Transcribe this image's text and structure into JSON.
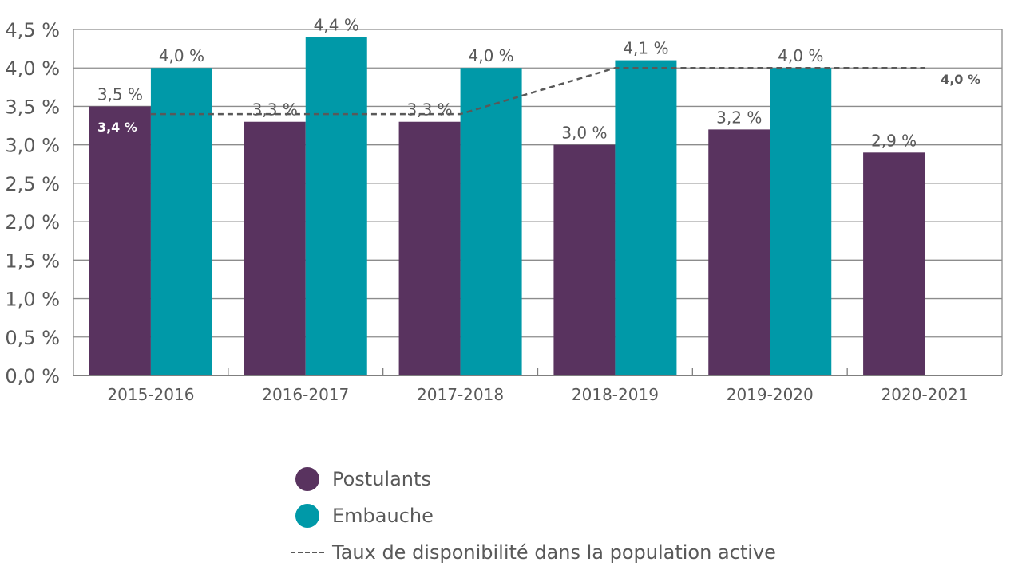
{
  "chart_data": {
    "type": "bar",
    "title": "",
    "xlabel": "",
    "ylabel": "",
    "categories": [
      "2015-2016",
      "2016-2017",
      "2017-2018",
      "2018-2019",
      "2019-2020",
      "2020-2021"
    ],
    "series": [
      {
        "name": "Postulants",
        "color": "#59335f",
        "values": [
          3.5,
          3.3,
          3.3,
          3.0,
          3.2,
          2.9
        ],
        "labels": [
          "3,5 %",
          "3,3 %",
          "3,3 %",
          "3,0 %",
          "3,2 %",
          "2,9 %"
        ]
      },
      {
        "name": "Embauche",
        "color": "#0099a8",
        "values": [
          4.0,
          4.4,
          4.0,
          4.1,
          4.0,
          null
        ],
        "labels": [
          "4,0 %",
          "4,4 %",
          "4,0 %",
          "4,1 %",
          "4,0 %",
          ""
        ]
      }
    ],
    "reference_line": {
      "name": "Taux de disponibilité dans la population active",
      "color": "#595959",
      "style": "dashed",
      "segments": [
        {
          "from_category": 0,
          "to_category": 2,
          "value": 3.4
        },
        {
          "from_category": 2,
          "to_category": 3,
          "value_start": 3.4,
          "value_end": 4.0
        },
        {
          "from_category": 3,
          "to_category": 5,
          "value": 4.0
        }
      ],
      "annotations": [
        {
          "text": "3,4 %",
          "category": 0,
          "value": 3.4
        },
        {
          "text": "4,0 %",
          "category": 5,
          "value": 4.0
        }
      ]
    },
    "yticks": [
      0.0,
      0.5,
      1.0,
      1.5,
      2.0,
      2.5,
      3.0,
      3.5,
      4.0,
      4.5
    ],
    "ytick_labels": [
      "0,0 %",
      "0,5 %",
      "1,0 %",
      "1,5 %",
      "2,0 %",
      "2,5 %",
      "3,0 %",
      "3,5 %",
      "4,0 %",
      "4,5 %"
    ],
    "ylim": [
      0,
      4.5
    ],
    "grid": true,
    "legend_position": "bottom-center"
  },
  "legend": {
    "items": [
      {
        "label": "Postulants",
        "color": "#59335f"
      },
      {
        "label": "Embauche",
        "color": "#0099a8"
      },
      {
        "label": "Taux de disponibilité dans la population active"
      }
    ]
  }
}
